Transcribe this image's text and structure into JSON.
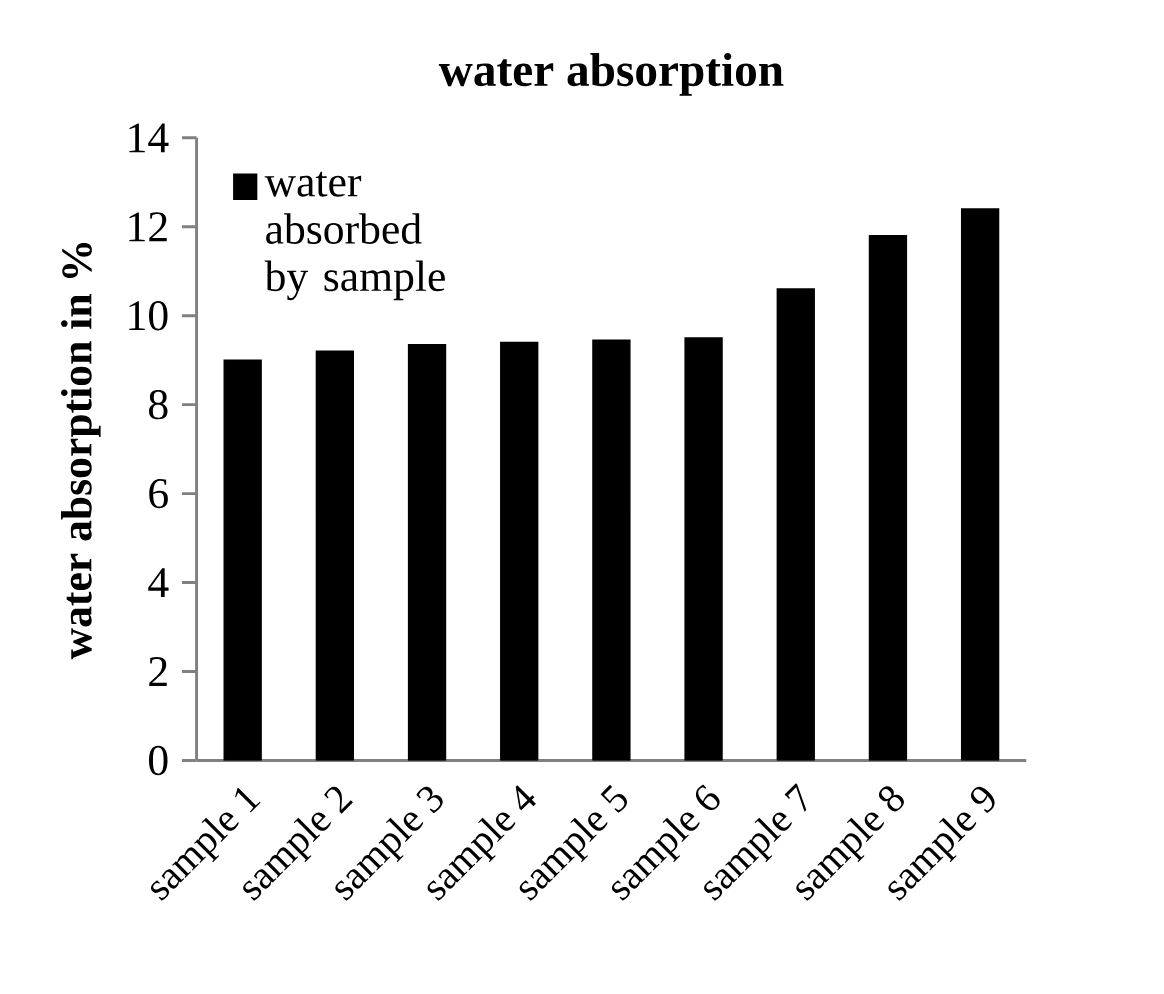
{
  "chart_data": {
    "type": "bar",
    "title": "water absorption",
    "ylabel": "water absorption in %",
    "categories": [
      "sample 1",
      "sample 2",
      "sample 3",
      "sample 4",
      "sample 5",
      "sample 6",
      "sample 7",
      "sample 8",
      "sample 9"
    ],
    "series": [
      {
        "name": "water absorbed by sample",
        "color": "#000000",
        "values": [
          9.0,
          9.2,
          9.35,
          9.4,
          9.45,
          9.5,
          10.6,
          11.8,
          12.4
        ]
      }
    ],
    "ylim": [
      0,
      14
    ],
    "yticks": [
      0,
      2,
      4,
      6,
      8,
      10,
      12,
      14
    ],
    "legend": "top left",
    "grid": false
  }
}
